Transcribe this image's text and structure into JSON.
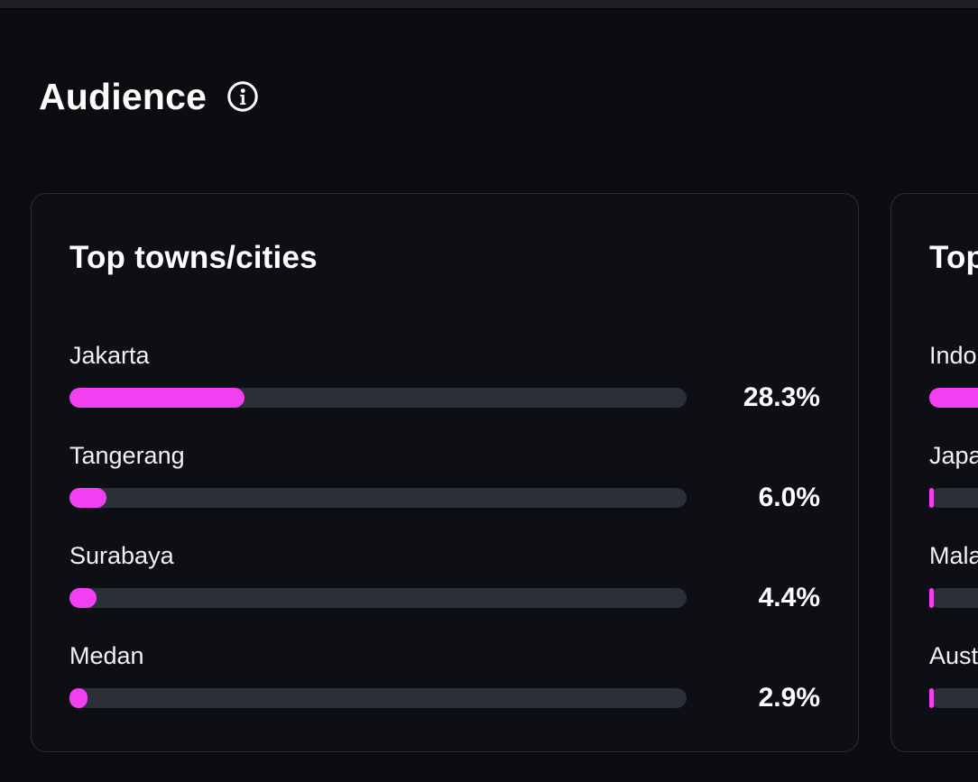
{
  "page": {
    "section_title": "Audience"
  },
  "icons": {
    "info": "info-circle-icon"
  },
  "colors": {
    "accent_pink": "#f23ff2",
    "bar_track": "#2b2f37",
    "page_bg": "#0b0d11",
    "card_bg": "#0d0f14",
    "card_border": "#2c2e35",
    "topbar_bg": "#1d1f24"
  },
  "cards": [
    {
      "title": "Top towns/cities",
      "rows": [
        {
          "label": "Jakarta",
          "pct": 28.3,
          "value_label": "28.3%"
        },
        {
          "label": "Tangerang",
          "pct": 6.0,
          "value_label": "6.0%"
        },
        {
          "label": "Surabaya",
          "pct": 4.4,
          "value_label": "4.4%"
        },
        {
          "label": "Medan",
          "pct": 2.9,
          "value_label": "2.9%"
        }
      ]
    },
    {
      "title": "Top countries",
      "visibility": "partially clipped at right viewport edge",
      "rows": [
        {
          "label": "Indonesia",
          "pct": 85,
          "value_label": ""
        },
        {
          "label": "Japan",
          "pct": 0.8,
          "value_label": ""
        },
        {
          "label": "Malaysia",
          "pct": 0.8,
          "value_label": ""
        },
        {
          "label": "Australia",
          "pct": 0.8,
          "value_label": ""
        }
      ]
    }
  ]
}
